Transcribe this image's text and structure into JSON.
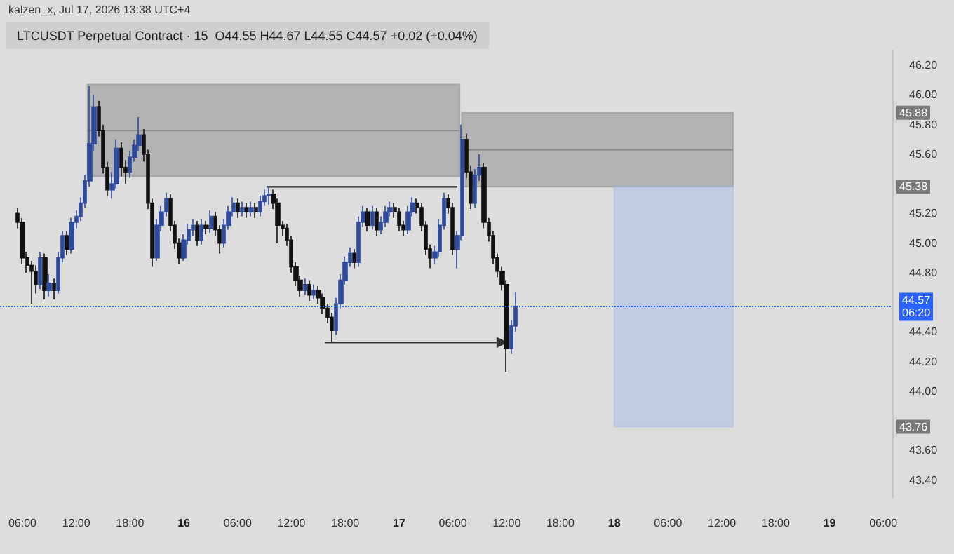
{
  "chart_data": {
    "type": "candlestick",
    "title": "LTCUSDT Perpetual Contract · 15  O44.55 H44.67 L44.55 C44.57 +0.02 (+0.04%)",
    "annotations": [
      "kalzen_x, Jul 17, 2026 13:38 UTC+4",
      {
        "text": "45.88",
        "y": 45.88
      },
      {
        "text": "45.38",
        "y": 45.38
      },
      {
        "text": "43.76",
        "y": 43.76
      }
    ],
    "xlim": [
      "2026-07-15T03:30",
      "2026-07-19T07:00"
    ],
    "xticks": [
      {
        "value": "2026-07-15T06:00",
        "label": "06:00"
      },
      {
        "value": "2026-07-15T12:00",
        "label": "12:00"
      },
      {
        "value": "2026-07-15T18:00",
        "label": "18:00"
      },
      {
        "value": "2026-07-16T00:00",
        "label": "16"
      },
      {
        "value": "2026-07-16T06:00",
        "label": "06:00"
      },
      {
        "value": "2026-07-16T12:00",
        "label": "12:00"
      },
      {
        "value": "2026-07-16T18:00",
        "label": "18:00"
      },
      {
        "value": "2026-07-17T00:00",
        "label": "17"
      },
      {
        "value": "2026-07-17T06:00",
        "label": "06:00"
      },
      {
        "value": "2026-07-17T12:00",
        "label": "12:00"
      },
      {
        "value": "2026-07-17T18:00",
        "label": "18:00"
      },
      {
        "value": "2026-07-18T00:00",
        "label": "18"
      },
      {
        "value": "2026-07-18T06:00",
        "label": "06:00"
      },
      {
        "value": "2026-07-18T12:00",
        "label": "12:00"
      },
      {
        "value": "2026-07-18T18:00",
        "label": "18:00"
      },
      {
        "value": "2026-07-19T00:00",
        "label": "19"
      },
      {
        "value": "2026-07-19T06:00",
        "label": "06:00"
      }
    ],
    "ylim": [
      43.28,
      46.3
    ],
    "yticks": [
      {
        "value": 43.4,
        "label": "43.40"
      },
      {
        "value": 43.6,
        "label": "43.60"
      },
      {
        "value": 44,
        "label": "44.00"
      },
      {
        "value": 44.2,
        "label": "44.20"
      },
      {
        "value": 44.4,
        "label": "44.40"
      },
      {
        "value": 44.8,
        "label": "44.80"
      },
      {
        "value": 45,
        "label": "45.00"
      },
      {
        "value": 45.2,
        "label": "45.20"
      },
      {
        "value": 45.6,
        "label": "45.60"
      },
      {
        "value": 45.8,
        "label": "45.80"
      },
      {
        "value": 46,
        "label": "46.00"
      },
      {
        "value": 46.2,
        "label": "46.20"
      }
    ],
    "ref_lines": [
      {
        "axis": "y",
        "value": 44.57,
        "label": "44.57\n06:20",
        "color": "#2962ff",
        "line_style": "dotted"
      }
    ],
    "series": [
      {
        "type": "line",
        "color": "#8f8f8f",
        "x": [
          "2026-07-15T13:15",
          "2026-07-17T06:45"
        ],
        "values": [
          45.76,
          45.76
        ],
        "lower": [
          45.45,
          45.45
        ],
        "upper": [
          46.07,
          46.07
        ]
      },
      {
        "type": "line",
        "color": "#8f8f8f",
        "x": [
          "2026-07-17T07:00",
          "2026-07-18T13:15"
        ],
        "values": [
          45.63,
          45.63
        ],
        "lower": [
          45.38,
          45.38
        ],
        "upper": [
          45.88,
          45.88
        ]
      },
      {
        "type": "line",
        "color": "#a9bce6",
        "x": [
          "2026-07-18T00:00",
          "2026-07-18T13:15"
        ],
        "values": [
          null,
          null
        ],
        "lower": [
          43.76,
          43.76
        ],
        "upper": [
          45.38,
          45.38
        ]
      },
      {
        "type": "line",
        "color": "#1a1a1a",
        "x": [
          "2026-07-16T09:15",
          "2026-07-17T06:30"
        ],
        "values": [
          45.38,
          45.38
        ]
      },
      {
        "type": "line",
        "color": "#333333",
        "marker": "triangle",
        "x": [
          "2026-07-16T15:45",
          "2026-07-17T11:30"
        ],
        "values": [
          44.33,
          44.33
        ]
      },
      {
        "colors": [
          "#111111",
          "#111111",
          "#111111",
          "#111111",
          "#111111",
          "#2e4b9b",
          "#111111",
          "#2e4b9b",
          "#111111",
          "#2e4b9b",
          "#2e4b9b",
          "#111111",
          "#2e4b9b",
          "#2e4b9b",
          "#2e4b9b",
          "#2e4b9b",
          "#2e4b9b",
          "#2e4b9b",
          "#111111",
          "#111111",
          "#111111",
          "#2e4b9b",
          "#2e4b9b",
          "#111111",
          "#111111",
          "#2e4b9b",
          "#2e4b9b",
          "#2e4b9b",
          "#111111",
          "#111111",
          "#111111",
          "#2e4b9b",
          "#2e4b9b",
          "#2e4b9b",
          "#111111",
          "#111111",
          "#111111",
          "#2e4b9b",
          "#2e4b9b",
          "#2e4b9b",
          "#111111",
          "#2e4b9b",
          "#111111",
          "#2e4b9b",
          "#111111",
          "#111111",
          "#2e4b9b",
          "#2e4b9b",
          "#2e4b9b",
          "#111111",
          "#2e4b9b",
          "#111111",
          "#2e4b9b",
          "#111111",
          "#2e4b9b",
          "#2e4b9b",
          "#2e4b9b",
          "#111111",
          "#111111",
          "#111111",
          "#111111",
          "#111111",
          "#111111",
          "#111111",
          "#2e4b9b",
          "#111111",
          "#2e4b9b",
          "#111111",
          "#111111",
          "#111111",
          "#111111",
          "#2e4b9b",
          "#2e4b9b",
          "#2e4b9b",
          "#2e4b9b",
          "#111111",
          "#2e4b9b",
          "#2e4b9b",
          "#111111",
          "#2e4b9b",
          "#111111",
          "#2e4b9b",
          "#2e4b9b",
          "#2e4b9b",
          "#111111",
          "#111111",
          "#111111",
          "#2e4b9b",
          "#2e4b9b",
          "#111111",
          "#111111",
          "#111111",
          "#111111",
          "#2e4b9b",
          "#2e4b9b",
          "#2e4b9b",
          "#111111",
          "#111111",
          "#2e4b9b",
          "#2e4b9b",
          "#111111",
          "#111111",
          "#2e4b9b",
          "#2e4b9b",
          "#111111",
          "#111111",
          "#111111",
          "#111111",
          "#111111",
          "#111111",
          "#2e4b9b",
          "#2e4b9b"
        ],
        "x": [
          "2026-07-15T05:30",
          "2026-07-15T06:00",
          "2026-07-15T06:30",
          "2026-07-15T07:00",
          "2026-07-15T07:30",
          "2026-07-15T08:00",
          "2026-07-15T08:30",
          "2026-07-15T09:00",
          "2026-07-15T09:30",
          "2026-07-15T10:00",
          "2026-07-15T10:30",
          "2026-07-15T11:00",
          "2026-07-15T11:30",
          "2026-07-15T12:00",
          "2026-07-15T12:30",
          "2026-07-15T13:00",
          "2026-07-15T13:30",
          "2026-07-15T14:00",
          "2026-07-15T14:30",
          "2026-07-15T15:00",
          "2026-07-15T15:30",
          "2026-07-15T16:00",
          "2026-07-15T16:30",
          "2026-07-15T17:00",
          "2026-07-15T17:30",
          "2026-07-15T18:00",
          "2026-07-15T18:30",
          "2026-07-15T19:00",
          "2026-07-15T19:30",
          "2026-07-15T20:00",
          "2026-07-15T20:30",
          "2026-07-15T21:00",
          "2026-07-15T21:30",
          "2026-07-15T22:00",
          "2026-07-15T22:30",
          "2026-07-15T23:00",
          "2026-07-15T23:30",
          "2026-07-16T00:00",
          "2026-07-16T00:30",
          "2026-07-16T01:00",
          "2026-07-16T01:30",
          "2026-07-16T02:00",
          "2026-07-16T02:30",
          "2026-07-16T03:00",
          "2026-07-16T03:30",
          "2026-07-16T04:00",
          "2026-07-16T04:30",
          "2026-07-16T05:00",
          "2026-07-16T05:30",
          "2026-07-16T06:00",
          "2026-07-16T06:30",
          "2026-07-16T07:00",
          "2026-07-16T07:30",
          "2026-07-16T08:00",
          "2026-07-16T08:30",
          "2026-07-16T09:00",
          "2026-07-16T09:30",
          "2026-07-16T10:00",
          "2026-07-16T10:30",
          "2026-07-16T11:00",
          "2026-07-16T11:30",
          "2026-07-16T12:00",
          "2026-07-16T12:30",
          "2026-07-16T13:00",
          "2026-07-16T13:30",
          "2026-07-16T14:00",
          "2026-07-16T14:30",
          "2026-07-16T15:00",
          "2026-07-16T15:30",
          "2026-07-16T16:00",
          "2026-07-16T16:30",
          "2026-07-16T17:00",
          "2026-07-16T17:30",
          "2026-07-16T18:00",
          "2026-07-16T18:30",
          "2026-07-16T19:00",
          "2026-07-16T19:30",
          "2026-07-16T20:00",
          "2026-07-16T20:30",
          "2026-07-16T21:00",
          "2026-07-16T21:30",
          "2026-07-16T22:00",
          "2026-07-16T22:30",
          "2026-07-16T23:00",
          "2026-07-16T23:30",
          "2026-07-17T00:00",
          "2026-07-17T00:30",
          "2026-07-17T01:00",
          "2026-07-17T01:30",
          "2026-07-17T02:00",
          "2026-07-17T02:30",
          "2026-07-17T03:00",
          "2026-07-17T03:30",
          "2026-07-17T04:00",
          "2026-07-17T04:30",
          "2026-07-17T05:00",
          "2026-07-17T05:30",
          "2026-07-17T06:00",
          "2026-07-17T06:30",
          "2026-07-17T07:00",
          "2026-07-17T07:30",
          "2026-07-17T08:00",
          "2026-07-17T08:30",
          "2026-07-17T09:00",
          "2026-07-17T09:30",
          "2026-07-17T10:00",
          "2026-07-17T10:30",
          "2026-07-17T11:00",
          "2026-07-17T11:30",
          "2026-07-17T12:00",
          "2026-07-17T12:30",
          "2026-07-17T13:00"
        ],
        "ohlc": [
          [
            45.2,
            45.24,
            45.1,
            45.14
          ],
          [
            45.14,
            45.17,
            44.86,
            44.9
          ],
          [
            44.9,
            44.94,
            44.8,
            44.85
          ],
          [
            44.85,
            44.88,
            44.59,
            44.81
          ],
          [
            44.81,
            44.85,
            44.66,
            44.72
          ],
          [
            44.72,
            44.94,
            44.69,
            44.9
          ],
          [
            44.9,
            44.93,
            44.62,
            44.68
          ],
          [
            44.68,
            44.79,
            44.64,
            44.73
          ],
          [
            44.73,
            44.76,
            44.62,
            44.68
          ],
          [
            44.68,
            44.94,
            44.66,
            44.9
          ],
          [
            44.9,
            45.08,
            44.87,
            45.05
          ],
          [
            45.05,
            45.08,
            44.92,
            44.96
          ],
          [
            44.96,
            45.17,
            44.93,
            45.14
          ],
          [
            45.14,
            45.22,
            45.1,
            45.18
          ],
          [
            45.18,
            45.31,
            45.15,
            45.27
          ],
          [
            45.27,
            45.46,
            45.24,
            45.42
          ],
          [
            45.42,
            46.06,
            45.38,
            45.67
          ],
          [
            45.67,
            46,
            45.62,
            45.92
          ],
          [
            45.92,
            45.96,
            45.72,
            45.76
          ],
          [
            45.76,
            45.8,
            45.47,
            45.51
          ],
          [
            45.51,
            45.55,
            45.32,
            45.36
          ],
          [
            45.36,
            45.48,
            45.3,
            45.4
          ],
          [
            45.4,
            45.7,
            45.37,
            45.64
          ],
          [
            45.64,
            45.68,
            45.45,
            45.51
          ],
          [
            45.51,
            45.56,
            45.4,
            45.48
          ],
          [
            45.48,
            45.62,
            45.44,
            45.58
          ],
          [
            45.58,
            45.7,
            45.55,
            45.66
          ],
          [
            45.66,
            45.85,
            45.62,
            45.73
          ],
          [
            45.73,
            45.77,
            45.55,
            45.6
          ],
          [
            45.6,
            45.63,
            45.23,
            45.27
          ],
          [
            45.27,
            45.3,
            44.84,
            44.9
          ],
          [
            44.9,
            45.16,
            44.88,
            45.12
          ],
          [
            45.12,
            45.25,
            45.08,
            45.21
          ],
          [
            45.21,
            45.34,
            45.18,
            45.3
          ],
          [
            45.3,
            45.33,
            45.08,
            45.12
          ],
          [
            45.12,
            45.15,
            44.96,
            45
          ],
          [
            45,
            45.03,
            44.86,
            44.9
          ],
          [
            44.9,
            45.06,
            44.88,
            45.02
          ],
          [
            45.02,
            45.13,
            44.99,
            45.09
          ],
          [
            45.09,
            45.16,
            45.05,
            45.12
          ],
          [
            45.12,
            45.15,
            44.98,
            45.02
          ],
          [
            45.02,
            45.16,
            44.99,
            45.12
          ],
          [
            45.12,
            45.15,
            45.06,
            45.1
          ],
          [
            45.1,
            45.22,
            45.07,
            45.18
          ],
          [
            45.18,
            45.21,
            45.05,
            45.09
          ],
          [
            45.09,
            45.12,
            44.93,
            45
          ],
          [
            45,
            45.16,
            44.97,
            45.12
          ],
          [
            45.12,
            45.25,
            45.09,
            45.21
          ],
          [
            45.21,
            45.31,
            45.18,
            45.27
          ],
          [
            45.27,
            45.3,
            45.17,
            45.21
          ],
          [
            45.21,
            45.28,
            45.18,
            45.24
          ],
          [
            45.24,
            45.27,
            45.17,
            45.21
          ],
          [
            45.21,
            45.28,
            45.18,
            45.24
          ],
          [
            45.24,
            45.27,
            45.17,
            45.21
          ],
          [
            45.21,
            45.32,
            45.18,
            45.28
          ],
          [
            45.28,
            45.36,
            45.25,
            45.32
          ],
          [
            45.32,
            45.38,
            45.26,
            45.33
          ],
          [
            45.33,
            45.36,
            45.23,
            45.27
          ],
          [
            45.27,
            45.3,
            45,
            45.12
          ],
          [
            45.12,
            45.15,
            45.05,
            45.1
          ],
          [
            45.1,
            45.13,
            44.98,
            45.02
          ],
          [
            45.02,
            45.05,
            44.8,
            44.84
          ],
          [
            44.84,
            44.87,
            44.71,
            44.75
          ],
          [
            44.75,
            44.78,
            44.64,
            44.68
          ],
          [
            44.68,
            44.76,
            44.65,
            44.72
          ],
          [
            44.72,
            44.75,
            44.61,
            44.65
          ],
          [
            44.65,
            44.72,
            44.62,
            44.68
          ],
          [
            44.68,
            44.71,
            44.59,
            44.63
          ],
          [
            44.63,
            44.66,
            44.52,
            44.56
          ],
          [
            44.56,
            44.59,
            44.46,
            44.5
          ],
          [
            44.5,
            44.53,
            44.33,
            44.41
          ],
          [
            44.41,
            44.63,
            44.38,
            44.59
          ],
          [
            44.59,
            44.79,
            44.56,
            44.75
          ],
          [
            44.75,
            44.91,
            44.72,
            44.87
          ],
          [
            44.87,
            44.97,
            44.84,
            44.93
          ],
          [
            44.93,
            44.96,
            44.83,
            44.87
          ],
          [
            44.87,
            45.18,
            44.84,
            45.14
          ],
          [
            45.14,
            45.25,
            45.11,
            45.21
          ],
          [
            45.21,
            45.24,
            45.08,
            45.12
          ],
          [
            45.12,
            45.25,
            45.09,
            45.21
          ],
          [
            45.21,
            45.24,
            45.05,
            45.09
          ],
          [
            45.09,
            45.18,
            45.06,
            45.14
          ],
          [
            45.14,
            45.25,
            45.11,
            45.21
          ],
          [
            45.21,
            45.28,
            45.18,
            45.24
          ],
          [
            45.24,
            45.27,
            45.17,
            45.21
          ],
          [
            45.21,
            45.24,
            45.08,
            45.12
          ],
          [
            45.12,
            45.15,
            45.05,
            45.09
          ],
          [
            45.09,
            45.25,
            45.06,
            45.21
          ],
          [
            45.21,
            45.31,
            45.18,
            45.27
          ],
          [
            45.27,
            45.3,
            45.2,
            45.24
          ],
          [
            45.24,
            45.27,
            45.08,
            45.12
          ],
          [
            45.12,
            45.15,
            44.92,
            44.96
          ],
          [
            44.96,
            44.99,
            44.83,
            44.9
          ],
          [
            44.9,
            44.98,
            44.86,
            44.94
          ],
          [
            44.94,
            45.16,
            44.91,
            45.12
          ],
          [
            45.12,
            45.34,
            45.09,
            45.3
          ],
          [
            45.3,
            45.33,
            45.2,
            45.24
          ],
          [
            45.24,
            45.27,
            44.92,
            44.96
          ],
          [
            44.96,
            45.08,
            44.83,
            45.05
          ],
          [
            45.05,
            45.8,
            45.02,
            45.7
          ],
          [
            45.7,
            45.74,
            45.44,
            45.48
          ],
          [
            45.48,
            45.52,
            45.23,
            45.27
          ],
          [
            45.27,
            45.5,
            45.24,
            45.46
          ],
          [
            45.46,
            45.6,
            45.42,
            45.51
          ],
          [
            45.51,
            45.54,
            45.1,
            45.14
          ],
          [
            45.14,
            45.17,
            45.01,
            45.05
          ],
          [
            45.05,
            45.08,
            44.86,
            44.9
          ],
          [
            44.9,
            44.93,
            44.77,
            44.81
          ],
          [
            44.81,
            44.84,
            44.68,
            44.72
          ],
          [
            44.72,
            44.75,
            44.13,
            44.29
          ],
          [
            44.29,
            44.48,
            44.25,
            44.44
          ],
          [
            44.44,
            44.67,
            44.4,
            44.57
          ]
        ]
      }
    ]
  }
}
